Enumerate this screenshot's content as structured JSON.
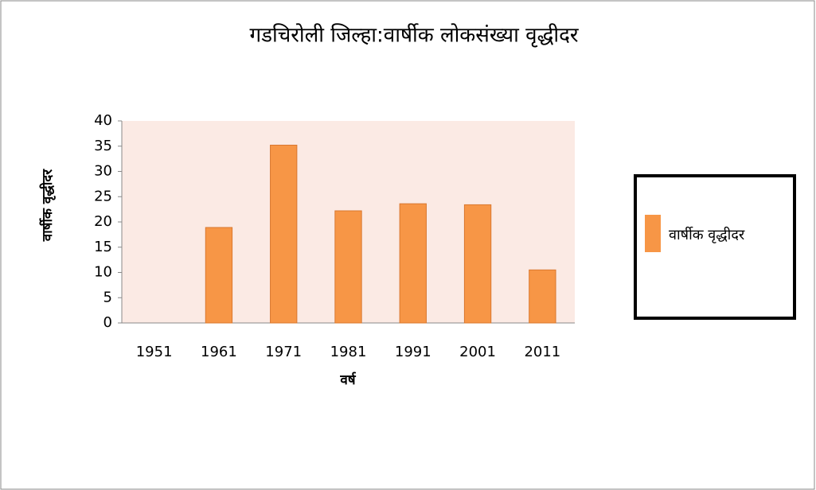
{
  "chart_data": {
    "type": "bar",
    "title": "गडचिरोली जिल्हा:वार्षीक  लोकसंख्या वृद्धीदर",
    "x_label": "वर्ष",
    "y_label": "वार्षीक वृद्धीदर",
    "categories": [
      "1951",
      "1961",
      "1971",
      "1981",
      "1991",
      "2001",
      "2011"
    ],
    "series": [
      {
        "name": "वार्षीक वृद्धीदर",
        "color": "#f79646",
        "values": [
          0,
          18.9,
          35.2,
          22.2,
          23.6,
          23.4,
          10.5
        ]
      }
    ],
    "ylim": [
      0,
      40
    ],
    "yticks": [
      0,
      5,
      10,
      15,
      20,
      25,
      30,
      35,
      40
    ],
    "grid": false,
    "legend": "right"
  }
}
